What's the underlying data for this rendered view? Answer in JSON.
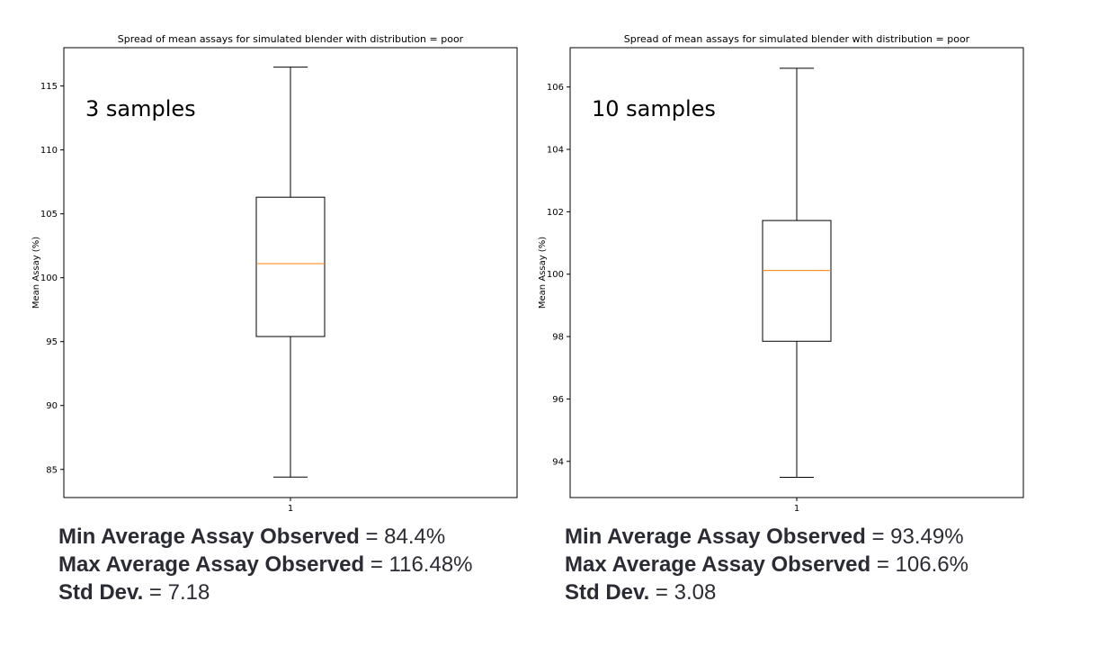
{
  "chart_data": [
    {
      "type": "box",
      "title": "Spread of mean assays for simulated blender with distribution = poor",
      "xlabel": "",
      "ylabel": "Mean Assay (%)",
      "categories": [
        "1"
      ],
      "annotation": "3 samples",
      "ylim": [
        82.8,
        118.0
      ],
      "yticks": [
        85,
        90,
        95,
        100,
        105,
        110,
        115
      ],
      "box": {
        "whisker_low": 84.4,
        "q1": 95.4,
        "median": 101.1,
        "q3": 106.3,
        "whisker_high": 116.48
      },
      "colors": {
        "box": "#000000",
        "median": "#ff7f0e"
      }
    },
    {
      "type": "box",
      "title": "Spread of mean assays for simulated blender with distribution = poor",
      "xlabel": "",
      "ylabel": "Mean Assay (%)",
      "categories": [
        "1"
      ],
      "annotation": "10 samples",
      "ylim": [
        92.84,
        107.26
      ],
      "yticks": [
        94,
        96,
        98,
        100,
        102,
        104,
        106
      ],
      "box": {
        "whisker_low": 93.49,
        "q1": 97.85,
        "median": 100.12,
        "q3": 101.72,
        "whisker_high": 106.6
      },
      "colors": {
        "box": "#000000",
        "median": "#ff7f0e"
      }
    }
  ],
  "stats": [
    {
      "min_label": "Min Average Assay Observed",
      "min_value": " = 84.4%",
      "max_label": "Max Average Assay Observed",
      "max_value": " = 116.48%",
      "std_label": "Std Dev.",
      "std_value": " = 7.18"
    },
    {
      "min_label": "Min Average Assay Observed",
      "min_value": " = 93.49%",
      "max_label": "Max Average Assay Observed",
      "max_value": " = 106.6%",
      "std_label": "Std Dev.",
      "std_value": " = 3.08"
    }
  ]
}
